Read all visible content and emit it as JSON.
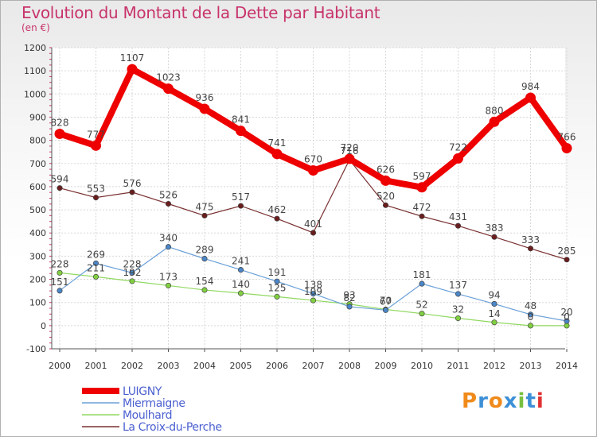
{
  "title": "Evolution du Montant de la Dette par Habitant",
  "subtitle": "(en €)",
  "logo": {
    "text": "Proxiti",
    "colors": [
      "#f08a1a",
      "#3d8fd6",
      "#f08a1a",
      "#3d8fd6",
      "#78c040",
      "#3d8fd6",
      "#e03030"
    ]
  },
  "chart_data": {
    "type": "line",
    "title": "Evolution du Montant de la Dette par Habitant",
    "ylabel": "(en €)",
    "ylim": [
      -100,
      1200
    ],
    "yticks": [
      -100,
      0,
      100,
      200,
      300,
      400,
      500,
      600,
      700,
      800,
      900,
      1000,
      1100,
      1200
    ],
    "x": [
      "2000",
      "2001",
      "2002",
      "2003",
      "2004",
      "2005",
      "2006",
      "2007",
      "2008",
      "2009",
      "2010",
      "2011",
      "2012",
      "2013",
      "2014"
    ],
    "grid": true,
    "legend": "bottom-left",
    "series": [
      {
        "name": "LUIGNY",
        "color": "#ee0000",
        "line_color": "#ee0000",
        "values": [
          828,
          777,
          1107,
          1023,
          936,
          841,
          741,
          670,
          720,
          626,
          597,
          722,
          880,
          984,
          766
        ],
        "labels": [
          "828",
          "777",
          "1107",
          "1023",
          "936",
          "841",
          "741",
          "670",
          "720",
          "626",
          "597",
          "722",
          "880",
          "984",
          "766"
        ]
      },
      {
        "name": "Miermaigne",
        "color": "#4a86c8",
        "line_color": "#6aa0d8",
        "values": [
          151,
          269,
          228,
          340,
          289,
          241,
          191,
          138,
          82,
          67,
          181,
          137,
          94,
          48,
          20
        ],
        "labels": [
          "151",
          "269",
          "228",
          "340",
          "289",
          "241",
          "191",
          "138",
          "82",
          "67",
          "181",
          "137",
          "94",
          "48",
          "20"
        ]
      },
      {
        "name": "Moulhard",
        "color": "#80d040",
        "line_color": "#90d860",
        "values": [
          228,
          211,
          192,
          173,
          154,
          140,
          125,
          109,
          93,
          70,
          52,
          32,
          14,
          0,
          0
        ],
        "labels": [
          "228",
          "211",
          "192",
          "173",
          "154",
          "140",
          "125",
          "109",
          "93",
          "70",
          "52",
          "32",
          "14",
          "0",
          "0"
        ]
      },
      {
        "name": "La Croix-du-Perche",
        "color": "#6a1d1d",
        "line_color": "#7a3030",
        "values": [
          594,
          553,
          576,
          526,
          475,
          517,
          462,
          401,
          716,
          520,
          472,
          431,
          383,
          333,
          285
        ],
        "labels": [
          "594",
          "553",
          "576",
          "526",
          "475",
          "517",
          "462",
          "401",
          "716",
          "520",
          "472",
          "431",
          "383",
          "333",
          "285"
        ]
      }
    ]
  }
}
